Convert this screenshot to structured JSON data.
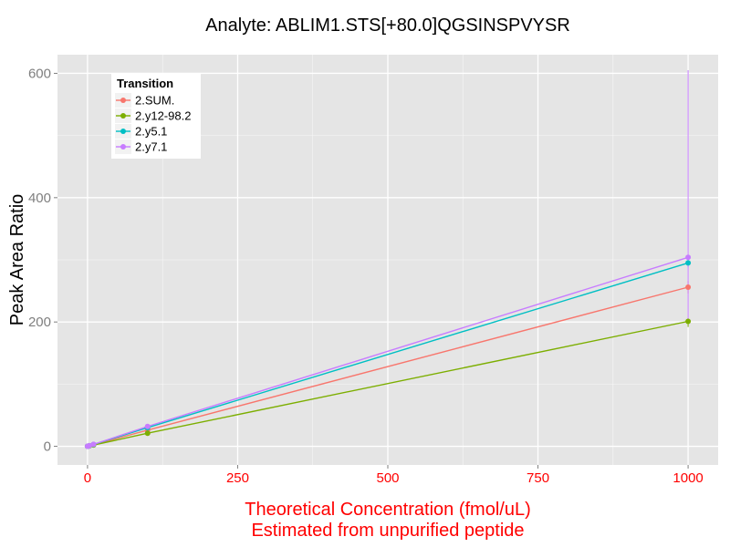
{
  "chart_data": {
    "type": "line",
    "title": "Analyte: ABLIM1.STS[+80.0]QGSINSPVYSR",
    "xlabel": [
      "Theoretical Concentration (fmol/uL)",
      "Estimated from unpurified peptide"
    ],
    "ylabel": "Peak Area Ratio",
    "xlim": [
      -50,
      1050
    ],
    "ylim": [
      -30,
      630
    ],
    "x_ticks": [
      0,
      250,
      500,
      750,
      1000
    ],
    "x_tick_labels": [
      "0",
      "250",
      "500",
      "750",
      "1000"
    ],
    "y_ticks": [
      0,
      200,
      400,
      600
    ],
    "y_tick_labels": [
      "0",
      "200",
      "400",
      "600"
    ],
    "grid": true,
    "legend": {
      "title": "Transition",
      "position": "top-left"
    },
    "colors": {
      "panel": "#e5e5e5",
      "grid": "#ffffff",
      "x_axis_text": "#ff0000",
      "y_axis_text": "#7f7f7f",
      "x_label": "#ff0000"
    },
    "x": [
      0,
      1,
      3,
      10,
      100,
      1000
    ],
    "series": [
      {
        "name": "2.SUM.",
        "color": "#f8766d",
        "values": [
          0,
          0.3,
          0.8,
          2.6,
          26,
          256
        ],
        "error_low": [
          0,
          0,
          0,
          0,
          24,
          246
        ],
        "error_high": [
          0,
          0,
          0,
          0,
          28,
          266
        ]
      },
      {
        "name": "2.y12-98.2",
        "color": "#7cae00",
        "values": [
          0,
          0.2,
          0.6,
          2.0,
          21,
          201
        ],
        "error_low": [
          0,
          0,
          0,
          0,
          20,
          192
        ],
        "error_high": [
          0,
          0,
          0,
          0,
          23,
          206
        ]
      },
      {
        "name": "2.y5.1",
        "color": "#00bfc4",
        "values": [
          0,
          0.3,
          0.9,
          3.0,
          30,
          295
        ],
        "error_low": [
          0,
          0,
          0,
          0,
          28,
          288
        ],
        "error_high": [
          0,
          0,
          0,
          0,
          32,
          302
        ]
      },
      {
        "name": "2.y7.1",
        "color": "#c77cff",
        "values": [
          0,
          0.3,
          0.9,
          3.1,
          32,
          304
        ],
        "error_low": [
          0,
          0,
          0,
          0,
          30,
          200
        ],
        "error_high": [
          0,
          0,
          0,
          0,
          35,
          605
        ]
      }
    ]
  }
}
